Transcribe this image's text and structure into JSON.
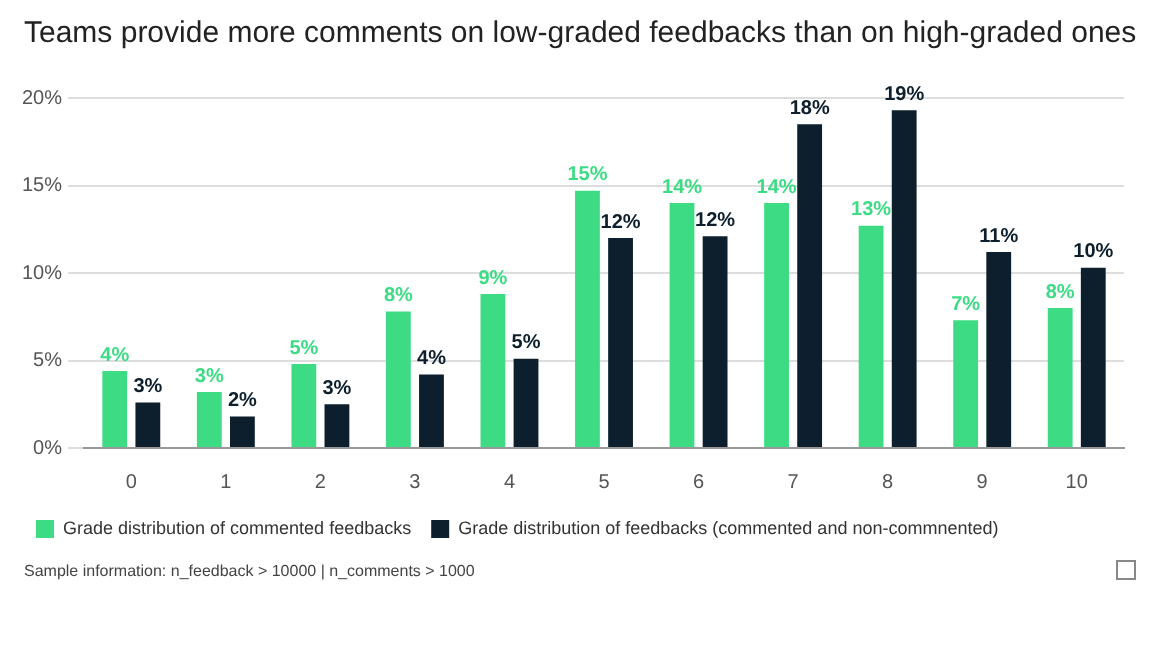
{
  "chart_data": {
    "type": "bar",
    "title": "Teams provide more comments on low-graded feedbacks than on high-graded ones",
    "categories": [
      "0",
      "1",
      "2",
      "3",
      "4",
      "5",
      "6",
      "7",
      "8",
      "9",
      "10"
    ],
    "series": [
      {
        "name": "Grade distribution of commented feedbacks",
        "color": "#3ddc84",
        "values": [
          4.4,
          3.2,
          4.8,
          7.8,
          8.8,
          14.7,
          14.0,
          14.0,
          12.7,
          7.3,
          8.0
        ],
        "value_labels": [
          "4%",
          "3%",
          "5%",
          "8%",
          "9%",
          "15%",
          "14%",
          "14%",
          "13%",
          "7%",
          "8%"
        ]
      },
      {
        "name": "Grade distribution of feedbacks (commented and non-commnented)",
        "color": "#0d1f2d",
        "values": [
          2.6,
          1.8,
          2.5,
          4.2,
          5.1,
          12.0,
          12.1,
          18.5,
          19.3,
          11.2,
          10.3
        ],
        "value_labels": [
          "3%",
          "2%",
          "3%",
          "4%",
          "5%",
          "12%",
          "12%",
          "18%",
          "19%",
          "11%",
          "10%"
        ]
      }
    ],
    "ylim": [
      0,
      20
    ],
    "yticks": [
      {
        "value": 0,
        "label": "0%"
      },
      {
        "value": 5,
        "label": "5%"
      },
      {
        "value": 10,
        "label": "10%"
      },
      {
        "value": 15,
        "label": "15%"
      },
      {
        "value": 20,
        "label": "20%"
      }
    ],
    "grid": "y",
    "legend": "bottom",
    "annotations": [
      "Sample information: n_feedback > 10000 | n_comments > 1000"
    ]
  }
}
